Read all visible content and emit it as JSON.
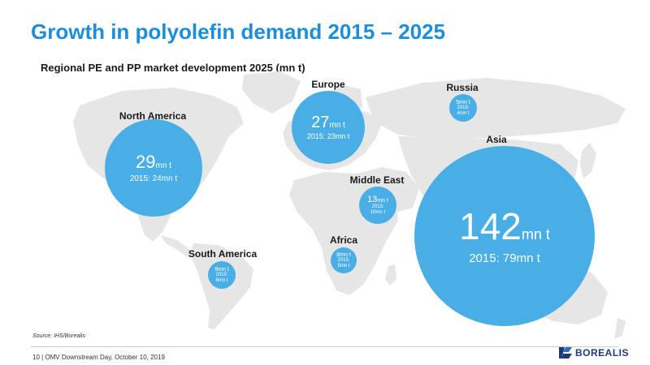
{
  "title": "Growth in polyolefin demand 2015 – 2025",
  "subtitle": "Regional PE and PP market development 2025 (mn t)",
  "colors": {
    "accent": "#1d8ed8",
    "bubble": "#4aaee6",
    "map": "#e6e6e6",
    "logo": "#1f3a7a"
  },
  "regions": {
    "north_america": {
      "name": "North America",
      "value": "29",
      "unit": "mn t",
      "prev": "2015: 24mn t"
    },
    "europe": {
      "name": "Europe",
      "value": "27",
      "unit": "mn t",
      "prev": "2015: 23mn t"
    },
    "russia": {
      "name": "Russia",
      "value": "5mn t",
      "prev_label": "2015:",
      "prev_value": "4mn t"
    },
    "asia": {
      "name": "Asia",
      "value": "142",
      "unit": "mn t",
      "prev": "2015: 79mn t"
    },
    "middle_east": {
      "name": "Middle East",
      "value": "13",
      "unit": "mn t",
      "prev_label": "2015:",
      "prev_value": "10mn t"
    },
    "africa": {
      "name": "Africa",
      "value": "8mn t",
      "prev_label": "2015:",
      "prev_value": "5mn t"
    },
    "south_america": {
      "name": "South America",
      "value": "9mn t",
      "prev_label": "2015:",
      "prev_value": "8mn t"
    }
  },
  "source": "Source: IHS/Borealis",
  "footer": "10 | OMV Downstream Day, October 10, 2019",
  "logo": {
    "text": "BOREALIS",
    "icon": "borealis-logo-icon"
  }
}
